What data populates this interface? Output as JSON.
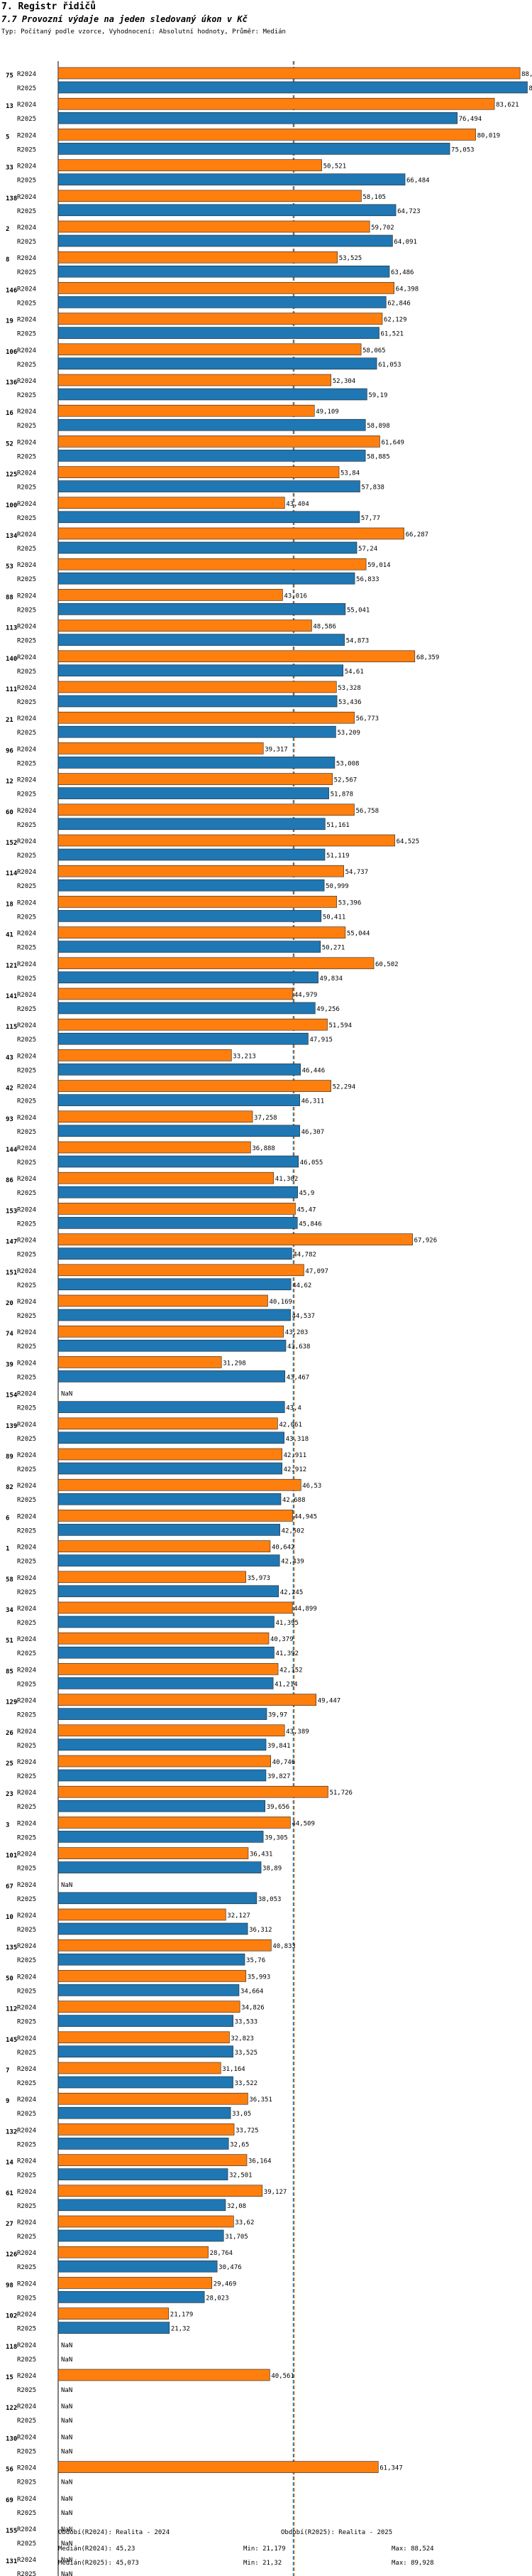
{
  "header": {
    "title": "7. Registr řidičů",
    "subtitle": "7.7 Provozní výdaje na jeden sledovaný úkon v Kč",
    "description": "Typ: Počítaný podle vzorce, Vyhodnocení: Absolutní hodnoty, Průměr: Medián"
  },
  "colors": {
    "r2024": "#ff7f0e",
    "r2025": "#1f77b4",
    "median2024": "#ff7f0e",
    "median2025": "#1f77b4"
  },
  "chart_data": {
    "type": "bar",
    "orientation": "horizontal",
    "series_names": [
      "R2024",
      "R2025"
    ],
    "xlim": [
      0,
      90
    ],
    "missing_label": "NaN",
    "groups": [
      {
        "label": "75",
        "r2024": 88.524,
        "r2025": 89.928
      },
      {
        "label": "13",
        "r2024": 83.621,
        "r2025": 76.494
      },
      {
        "label": "5",
        "r2024": 80.019,
        "r2025": 75.053
      },
      {
        "label": "33",
        "r2024": 50.521,
        "r2025": 66.484
      },
      {
        "label": "138",
        "r2024": 58.105,
        "r2025": 64.723
      },
      {
        "label": "2",
        "r2024": 59.702,
        "r2025": 64.091
      },
      {
        "label": "8",
        "r2024": 53.525,
        "r2025": 63.486
      },
      {
        "label": "146",
        "r2024": 64.398,
        "r2025": 62.846
      },
      {
        "label": "19",
        "r2024": 62.129,
        "r2025": 61.521
      },
      {
        "label": "106",
        "r2024": 58.065,
        "r2025": 61.053
      },
      {
        "label": "136",
        "r2024": 52.304,
        "r2025": 59.19
      },
      {
        "label": "16",
        "r2024": 49.109,
        "r2025": 58.898
      },
      {
        "label": "52",
        "r2024": 61.649,
        "r2025": 58.885
      },
      {
        "label": "125",
        "r2024": 53.84,
        "r2025": 57.838
      },
      {
        "label": "100",
        "r2024": 43.404,
        "r2025": 57.77
      },
      {
        "label": "134",
        "r2024": 66.287,
        "r2025": 57.24
      },
      {
        "label": "53",
        "r2024": 59.014,
        "r2025": 56.833
      },
      {
        "label": "88",
        "r2024": 43.016,
        "r2025": 55.041
      },
      {
        "label": "113",
        "r2024": 48.586,
        "r2025": 54.873
      },
      {
        "label": "140",
        "r2024": 68.359,
        "r2025": 54.61
      },
      {
        "label": "111",
        "r2024": 53.328,
        "r2025": 53.436
      },
      {
        "label": "21",
        "r2024": 56.773,
        "r2025": 53.209
      },
      {
        "label": "96",
        "r2024": 39.317,
        "r2025": 53.008
      },
      {
        "label": "12",
        "r2024": 52.567,
        "r2025": 51.878
      },
      {
        "label": "60",
        "r2024": 56.758,
        "r2025": 51.161
      },
      {
        "label": "152",
        "r2024": 64.525,
        "r2025": 51.119
      },
      {
        "label": "114",
        "r2024": 54.737,
        "r2025": 50.999
      },
      {
        "label": "18",
        "r2024": 53.396,
        "r2025": 50.411
      },
      {
        "label": "41",
        "r2024": 55.044,
        "r2025": 50.271
      },
      {
        "label": "121",
        "r2024": 60.502,
        "r2025": 49.834
      },
      {
        "label": "141",
        "r2024": 44.979,
        "r2025": 49.256
      },
      {
        "label": "115",
        "r2024": 51.594,
        "r2025": 47.915
      },
      {
        "label": "43",
        "r2024": 33.213,
        "r2025": 46.446
      },
      {
        "label": "42",
        "r2024": 52.294,
        "r2025": 46.311
      },
      {
        "label": "93",
        "r2024": 37.258,
        "r2025": 46.307
      },
      {
        "label": "144",
        "r2024": 36.888,
        "r2025": 46.055
      },
      {
        "label": "86",
        "r2024": 41.302,
        "r2025": 45.9
      },
      {
        "label": "153",
        "r2024": 45.47,
        "r2025": 45.846
      },
      {
        "label": "147",
        "r2024": 67.926,
        "r2025": 44.782
      },
      {
        "label": "151",
        "r2024": 47.097,
        "r2025": 44.62
      },
      {
        "label": "20",
        "r2024": 40.169,
        "r2025": 44.537
      },
      {
        "label": "74",
        "r2024": 43.203,
        "r2025": 43.638
      },
      {
        "label": "39",
        "r2024": 31.298,
        "r2025": 43.467
      },
      {
        "label": "154",
        "r2024": null,
        "r2025": 43.4
      },
      {
        "label": "139",
        "r2024": 42.061,
        "r2025": 43.318
      },
      {
        "label": "89",
        "r2024": 42.911,
        "r2025": 42.912
      },
      {
        "label": "82",
        "r2024": 46.53,
        "r2025": 42.688
      },
      {
        "label": "6",
        "r2024": 44.945,
        "r2025": 42.502
      },
      {
        "label": "1",
        "r2024": 40.642,
        "r2025": 42.439
      },
      {
        "label": "58",
        "r2024": 35.973,
        "r2025": 42.245
      },
      {
        "label": "34",
        "r2024": 44.899,
        "r2025": 41.395
      },
      {
        "label": "51",
        "r2024": 40.379,
        "r2025": 41.392
      },
      {
        "label": "85",
        "r2024": 42.152,
        "r2025": 41.214
      },
      {
        "label": "129",
        "r2024": 49.447,
        "r2025": 39.97
      },
      {
        "label": "26",
        "r2024": 43.389,
        "r2025": 39.841
      },
      {
        "label": "25",
        "r2024": 40.746,
        "r2025": 39.827
      },
      {
        "label": "23",
        "r2024": 51.726,
        "r2025": 39.656
      },
      {
        "label": "3",
        "r2024": 44.509,
        "r2025": 39.305
      },
      {
        "label": "101",
        "r2024": 36.431,
        "r2025": 38.89
      },
      {
        "label": "67",
        "r2024": null,
        "r2025": 38.053
      },
      {
        "label": "10",
        "r2024": 32.127,
        "r2025": 36.312
      },
      {
        "label": "135",
        "r2024": 40.833,
        "r2025": 35.76
      },
      {
        "label": "50",
        "r2024": 35.993,
        "r2025": 34.664
      },
      {
        "label": "112",
        "r2024": 34.826,
        "r2025": 33.533
      },
      {
        "label": "145",
        "r2024": 32.823,
        "r2025": 33.525
      },
      {
        "label": "7",
        "r2024": 31.164,
        "r2025": 33.522
      },
      {
        "label": "9",
        "r2024": 36.351,
        "r2025": 33.05
      },
      {
        "label": "132",
        "r2024": 33.725,
        "r2025": 32.65
      },
      {
        "label": "14",
        "r2024": 36.164,
        "r2025": 32.501
      },
      {
        "label": "61",
        "r2024": 39.127,
        "r2025": 32.08
      },
      {
        "label": "27",
        "r2024": 33.62,
        "r2025": 31.705
      },
      {
        "label": "126",
        "r2024": 28.764,
        "r2025": 30.476
      },
      {
        "label": "98",
        "r2024": 29.469,
        "r2025": 28.023
      },
      {
        "label": "102",
        "r2024": 21.179,
        "r2025": 21.32
      },
      {
        "label": "118",
        "r2024": null,
        "r2025": null
      },
      {
        "label": "15",
        "r2024": 40.561,
        "r2025": null
      },
      {
        "label": "122",
        "r2024": null,
        "r2025": null
      },
      {
        "label": "130",
        "r2024": null,
        "r2025": null
      },
      {
        "label": "56",
        "r2024": 61.347,
        "r2025": null
      },
      {
        "label": "69",
        "r2024": null,
        "r2025": null
      },
      {
        "label": "155",
        "r2024": null,
        "r2025": null
      },
      {
        "label": "131",
        "r2024": null,
        "r2025": null
      }
    ],
    "medians": {
      "r2024": 45.23,
      "r2025": 45.073
    }
  },
  "footer": {
    "legend_2024": "Období(R2024): Realita - 2024",
    "legend_2025": "Období(R2025): Realita - 2025",
    "median_2024": "Medián(R2024): 45,23",
    "median_2025": "Medián(R2025): 45,073",
    "min_2024": "Min: 21,179",
    "min_2025": "Min: 21,32",
    "max_2024": "Max: 88,524",
    "max_2025": "Max: 89,928"
  }
}
